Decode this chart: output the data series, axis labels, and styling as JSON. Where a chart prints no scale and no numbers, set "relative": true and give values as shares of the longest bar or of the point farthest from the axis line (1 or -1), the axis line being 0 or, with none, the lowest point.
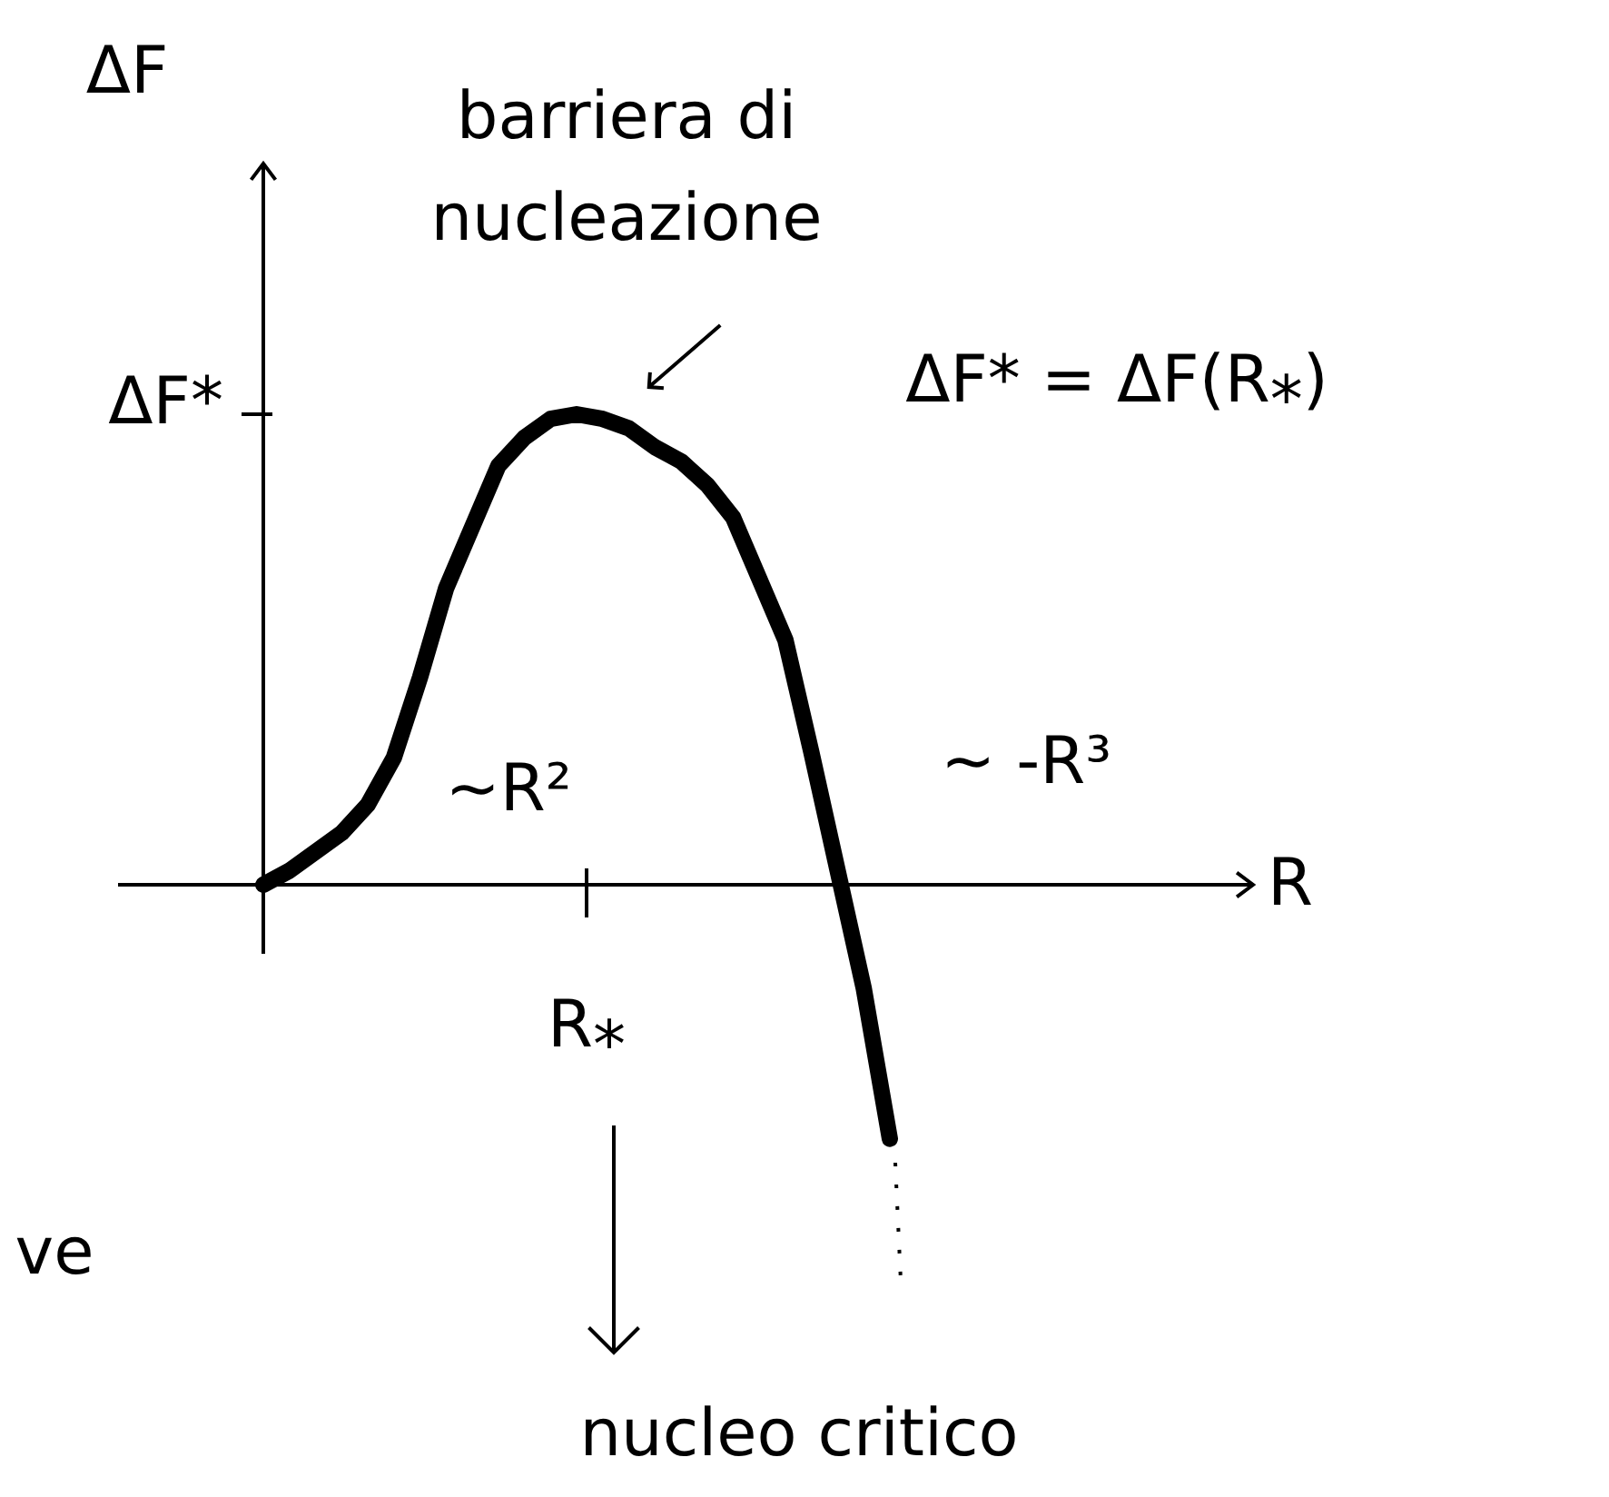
{
  "chart_data": {
    "type": "line",
    "relative": true,
    "ylabel": "ΔF",
    "categories": [
      null,
      null,
      null,
      null,
      null,
      null,
      null,
      null,
      null,
      null,
      null,
      null,
      null,
      null,
      null,
      null,
      null,
      null,
      null,
      null,
      null,
      null,
      null,
      null,
      null
    ],
    "series": [
      {
        "color": "#000000",
        "line_style": "solid",
        "values": [
          0,
          0.03,
          0.07,
          0.11,
          0.17,
          0.27,
          0.44,
          0.63,
          0.76,
          0.89,
          0.95,
          0.99,
          1,
          0.99,
          0.97,
          0.93,
          0.9,
          0.85,
          0.78,
          0.65,
          0.52,
          0.28,
          0.03,
          -0.22,
          -0.54
        ]
      }
    ],
    "annotations": [
      "ΔF*",
      "R⁎",
      "barriera di nucleazione",
      "ΔF* = ΔF(R⁎)",
      "~R²",
      "~ -R³",
      "nucleo critico",
      "ve",
      "R"
    ]
  }
}
